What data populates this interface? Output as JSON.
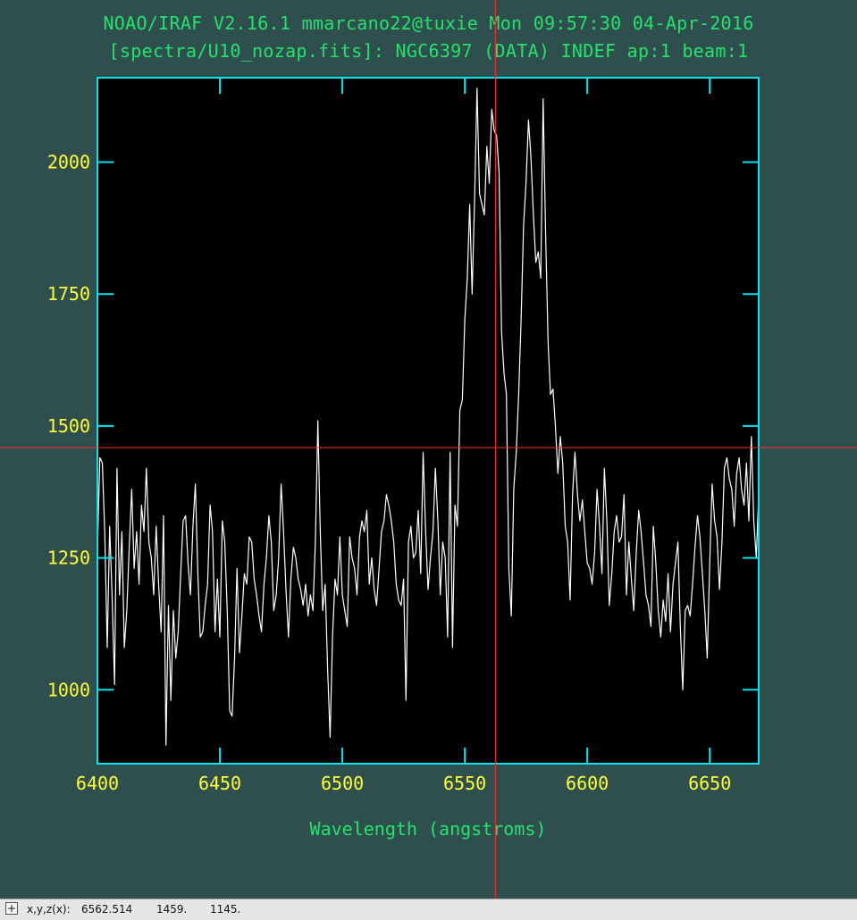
{
  "window": {
    "title_line1": "NOAO/IRAF V2.16.1 mmarcano22@tuxie Mon 09:57:30 04-Apr-2016",
    "title_line2": "[spectra/U10_nozap.fits]: NGC6397 (DATA) INDEF ap:1 beam:1"
  },
  "colors": {
    "background": "#2f4f4f",
    "plot_background": "#000000",
    "frame": "#00e5ee",
    "tick_labels": "#ffff33",
    "title_text": "#22e36a",
    "spectrum": "#ffffff",
    "cursor": "#ff2b2b"
  },
  "statusbar": {
    "toggle_icon": "+",
    "label": "x,y,z(x):",
    "x": "6562.514",
    "y": "1459.",
    "z": "1145."
  },
  "chart_data": {
    "type": "line",
    "title": "[spectra/U10_nozap.fits]: NGC6397 (DATA) INDEF ap:1 beam:1",
    "xlabel": "Wavelength (angstroms)",
    "ylabel": "",
    "xlim": [
      6400,
      6670
    ],
    "ylim": [
      860,
      2160
    ],
    "xticks": [
      6400,
      6450,
      6500,
      6550,
      6600,
      6650
    ],
    "yticks": [
      1000,
      1250,
      1500,
      1750,
      2000
    ],
    "grid": false,
    "cursor": {
      "x": 6562.514,
      "y": 1459
    },
    "series": [
      {
        "x": [
          6400,
          6401,
          6402,
          6403,
          6404,
          6405,
          6406,
          6407,
          6408,
          6409,
          6410,
          6411,
          6412,
          6413,
          6414,
          6415,
          6416,
          6417,
          6418,
          6419,
          6420,
          6421,
          6422,
          6423,
          6424,
          6425,
          6426,
          6427,
          6428,
          6429,
          6430,
          6431,
          6432,
          6433,
          6434,
          6435,
          6436,
          6437,
          6438,
          6439,
          6440,
          6441,
          6442,
          6443,
          6444,
          6445,
          6446,
          6447,
          6448,
          6449,
          6450,
          6451,
          6452,
          6453,
          6454,
          6455,
          6456,
          6457,
          6458,
          6459,
          6460,
          6461,
          6462,
          6463,
          6464,
          6465,
          6466,
          6467,
          6468,
          6469,
          6470,
          6471,
          6472,
          6473,
          6474,
          6475,
          6476,
          6477,
          6478,
          6479,
          6480,
          6481,
          6482,
          6483,
          6484,
          6485,
          6486,
          6487,
          6488,
          6489,
          6490,
          6491,
          6492,
          6493,
          6494,
          6495,
          6496,
          6497,
          6498,
          6499,
          6500,
          6501,
          6502,
          6503,
          6504,
          6505,
          6506,
          6507,
          6508,
          6509,
          6510,
          6511,
          6512,
          6513,
          6514,
          6515,
          6516,
          6517,
          6518,
          6519,
          6520,
          6521,
          6522,
          6523,
          6524,
          6525,
          6526,
          6527,
          6528,
          6529,
          6530,
          6531,
          6532,
          6533,
          6534,
          6535,
          6536,
          6537,
          6538,
          6539,
          6540,
          6541,
          6542,
          6543,
          6544,
          6545,
          6546,
          6547,
          6548,
          6549,
          6550,
          6551,
          6552,
          6553,
          6554,
          6555,
          6556,
          6557,
          6558,
          6559,
          6560,
          6561,
          6562,
          6563,
          6564,
          6565,
          6566,
          6567,
          6568,
          6569,
          6570,
          6571,
          6572,
          6573,
          6574,
          6575,
          6576,
          6577,
          6578,
          6579,
          6580,
          6581,
          6582,
          6583,
          6584,
          6585,
          6586,
          6587,
          6588,
          6589,
          6590,
          6591,
          6592,
          6593,
          6594,
          6595,
          6596,
          6597,
          6598,
          6599,
          6600,
          6601,
          6602,
          6603,
          6604,
          6605,
          6606,
          6607,
          6608,
          6609,
          6610,
          6611,
          6612,
          6613,
          6614,
          6615,
          6616,
          6617,
          6618,
          6619,
          6620,
          6621,
          6622,
          6623,
          6624,
          6625,
          6626,
          6627,
          6628,
          6629,
          6630,
          6631,
          6632,
          6633,
          6634,
          6635,
          6636,
          6637,
          6638,
          6639,
          6640,
          6641,
          6642,
          6643,
          6644,
          6645,
          6646,
          6647,
          6648,
          6649,
          6650,
          6651,
          6652,
          6653,
          6654,
          6655,
          6656,
          6657,
          6658,
          6659,
          6660,
          6661,
          6662,
          6663,
          6664,
          6665,
          6666,
          6667,
          6668,
          6669,
          6670
        ],
        "values": [
          1260,
          1440,
          1430,
          1300,
          1080,
          1310,
          1180,
          1010,
          1420,
          1180,
          1300,
          1080,
          1150,
          1270,
          1380,
          1230,
          1300,
          1200,
          1350,
          1300,
          1420,
          1280,
          1250,
          1180,
          1310,
          1200,
          1110,
          1330,
          895,
          1160,
          980,
          1150,
          1060,
          1110,
          1220,
          1320,
          1330,
          1240,
          1180,
          1310,
          1390,
          1220,
          1100,
          1110,
          1160,
          1200,
          1350,
          1300,
          1110,
          1210,
          1100,
          1320,
          1280,
          1150,
          960,
          950,
          1060,
          1230,
          1070,
          1140,
          1220,
          1200,
          1290,
          1280,
          1210,
          1180,
          1140,
          1110,
          1200,
          1250,
          1330,
          1280,
          1150,
          1180,
          1250,
          1390,
          1300,
          1190,
          1100,
          1210,
          1270,
          1250,
          1210,
          1190,
          1160,
          1200,
          1140,
          1180,
          1150,
          1280,
          1510,
          1300,
          1150,
          1200,
          1040,
          910,
          1100,
          1210,
          1180,
          1290,
          1180,
          1150,
          1120,
          1290,
          1250,
          1230,
          1180,
          1290,
          1320,
          1300,
          1340,
          1200,
          1250,
          1190,
          1160,
          1230,
          1300,
          1320,
          1370,
          1350,
          1320,
          1280,
          1200,
          1170,
          1160,
          1210,
          980,
          1280,
          1310,
          1250,
          1260,
          1340,
          1220,
          1450,
          1300,
          1190,
          1250,
          1300,
          1420,
          1320,
          1180,
          1280,
          1250,
          1100,
          1450,
          1080,
          1350,
          1310,
          1530,
          1550,
          1700,
          1780,
          1920,
          1750,
          1930,
          2140,
          1940,
          1920,
          1900,
          2030,
          1960,
          2100,
          2060,
          2050,
          1980,
          1680,
          1600,
          1560,
          1230,
          1140,
          1380,
          1450,
          1560,
          1700,
          1880,
          1960,
          2080,
          2010,
          1900,
          1810,
          1830,
          1780,
          2120,
          1860,
          1660,
          1560,
          1570,
          1500,
          1410,
          1480,
          1430,
          1310,
          1280,
          1170,
          1370,
          1450,
          1370,
          1320,
          1360,
          1300,
          1240,
          1230,
          1200,
          1260,
          1380,
          1310,
          1220,
          1420,
          1320,
          1160,
          1220,
          1300,
          1330,
          1280,
          1290,
          1370,
          1180,
          1280,
          1210,
          1150,
          1260,
          1340,
          1300,
          1240,
          1180,
          1160,
          1120,
          1310,
          1240,
          1150,
          1100,
          1170,
          1130,
          1220,
          1110,
          1200,
          1240,
          1280,
          1120,
          1000,
          1150,
          1160,
          1140,
          1200,
          1270,
          1330,
          1290,
          1220,
          1150,
          1060,
          1240,
          1390,
          1320,
          1290,
          1190,
          1280,
          1420,
          1440,
          1400,
          1380,
          1310,
          1410,
          1440,
          1380,
          1350,
          1430,
          1320,
          1480,
          1320,
          1250,
          1370
        ]
      }
    ]
  }
}
